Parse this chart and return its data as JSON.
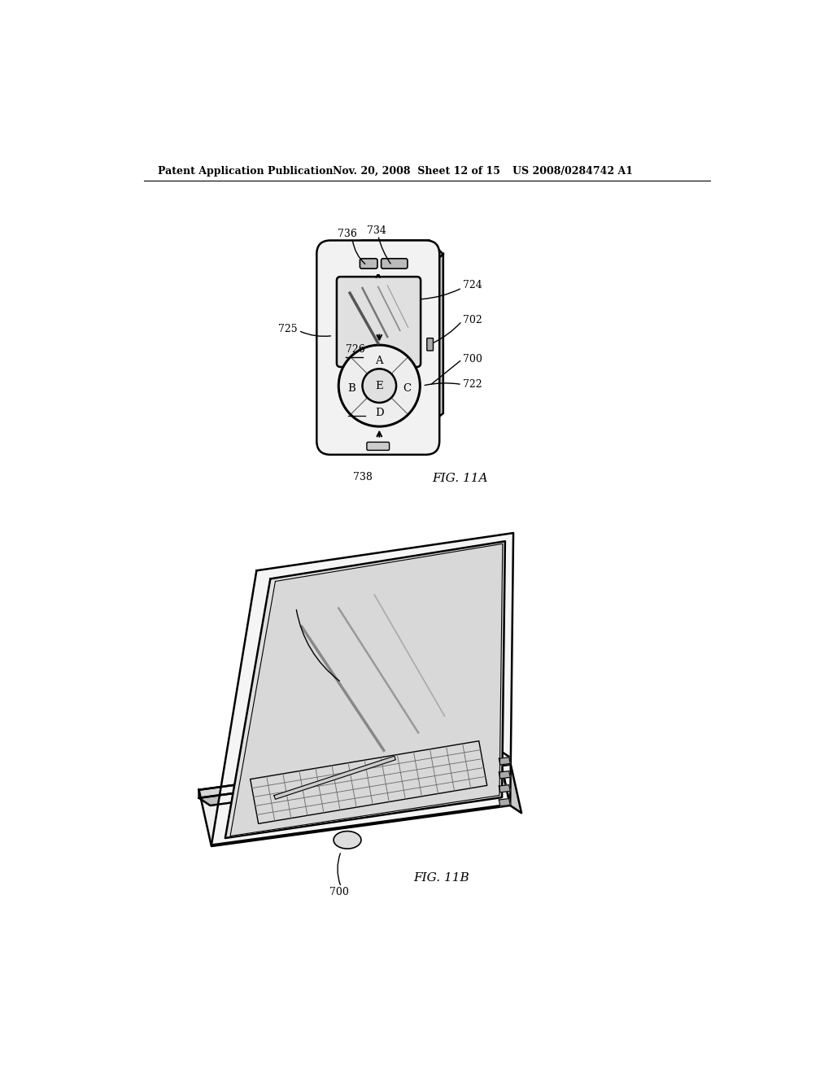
{
  "header_left": "Patent Application Publication",
  "header_mid": "Nov. 20, 2008  Sheet 12 of 15",
  "header_right": "US 2008/0284742 A1",
  "fig11a_label": "FIG. 11A",
  "fig11b_label": "FIG. 11B",
  "bg_color": "#ffffff",
  "line_color": "#000000"
}
